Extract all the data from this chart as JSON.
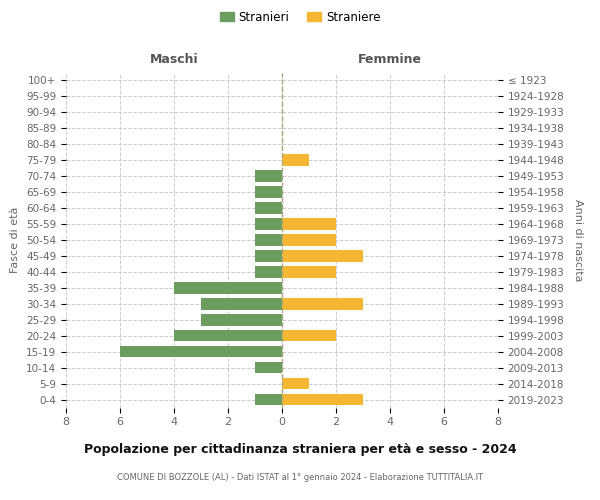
{
  "age_groups": [
    "100+",
    "95-99",
    "90-94",
    "85-89",
    "80-84",
    "75-79",
    "70-74",
    "65-69",
    "60-64",
    "55-59",
    "50-54",
    "45-49",
    "40-44",
    "35-39",
    "30-34",
    "25-29",
    "20-24",
    "15-19",
    "10-14",
    "5-9",
    "0-4"
  ],
  "birth_years": [
    "≤ 1923",
    "1924-1928",
    "1929-1933",
    "1934-1938",
    "1939-1943",
    "1944-1948",
    "1949-1953",
    "1954-1958",
    "1959-1963",
    "1964-1968",
    "1969-1973",
    "1974-1978",
    "1979-1983",
    "1984-1988",
    "1989-1993",
    "1994-1998",
    "1999-2003",
    "2004-2008",
    "2009-2013",
    "2014-2018",
    "2019-2023"
  ],
  "maschi": [
    0,
    0,
    0,
    0,
    0,
    0,
    1,
    1,
    1,
    1,
    1,
    1,
    1,
    4,
    3,
    3,
    4,
    6,
    1,
    0,
    1
  ],
  "femmine": [
    0,
    0,
    0,
    0,
    0,
    1,
    0,
    0,
    0,
    2,
    2,
    3,
    2,
    0,
    3,
    0,
    2,
    0,
    0,
    1,
    3
  ],
  "color_maschi": "#6b9e5e",
  "color_femmine": "#f5b731",
  "title": "Popolazione per cittadinanza straniera per età e sesso - 2024",
  "subtitle": "COMUNE DI BOZZOLE (AL) - Dati ISTAT al 1° gennaio 2024 - Elaborazione TUTTITALIA.IT",
  "xlabel_left": "Maschi",
  "xlabel_right": "Femmine",
  "ylabel_left": "Fasce di età",
  "ylabel_right": "Anni di nascita",
  "legend_stranieri": "Stranieri",
  "legend_straniere": "Straniere",
  "xlim": 8,
  "background_color": "#ffffff",
  "grid_color": "#cccccc"
}
